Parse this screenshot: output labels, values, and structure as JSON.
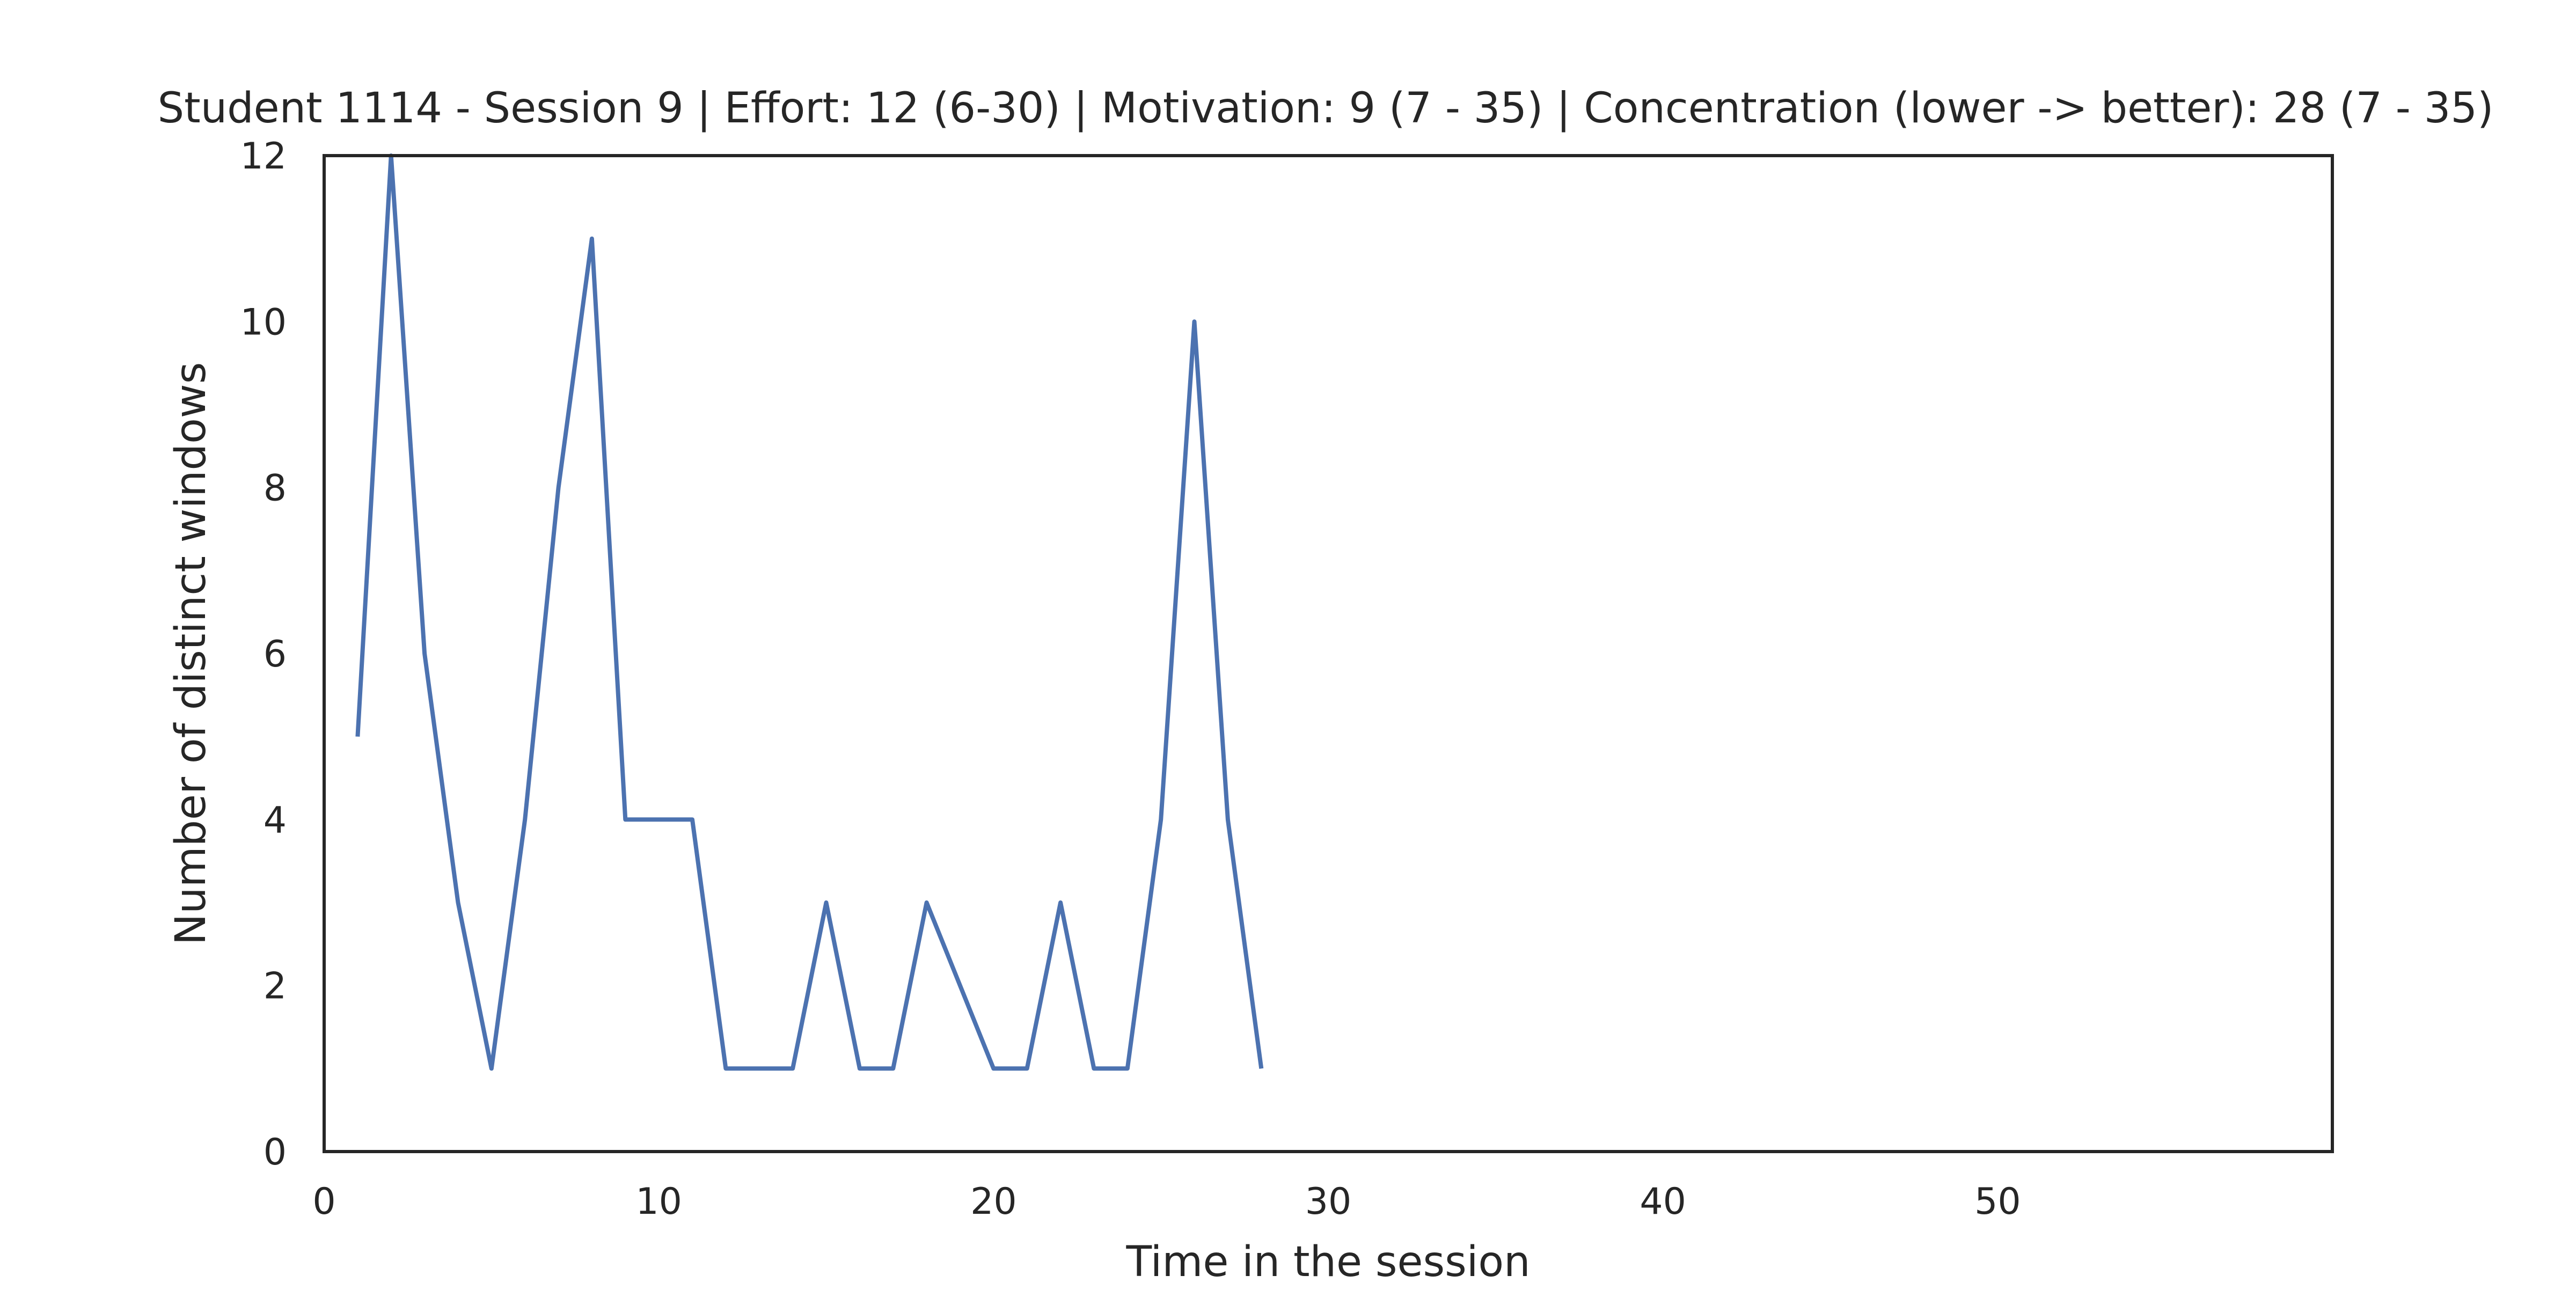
{
  "chart_data": {
    "type": "line",
    "title": "Student 1114 - Session 9 | Effort: 12 (6-30) | Motivation: 9 (7 - 35) | Concentration (lower -> better): 28 (7 - 35)",
    "xlabel": "Time in the session",
    "ylabel": "Number of distinct windows",
    "xlim": [
      0,
      60
    ],
    "ylim": [
      0,
      12
    ],
    "x_ticks": [
      0,
      10,
      20,
      30,
      40,
      50
    ],
    "y_ticks": [
      0,
      2,
      4,
      6,
      8,
      10,
      12
    ],
    "grid": false,
    "line_color": "#4c72b0",
    "series": [
      {
        "x": [
          1,
          2,
          3,
          4,
          5,
          6,
          7,
          8,
          9,
          10,
          11,
          12,
          13,
          14,
          15,
          16,
          17,
          18,
          19,
          20,
          21,
          22,
          23,
          24,
          25,
          26,
          27,
          28
        ],
        "values": [
          5,
          12,
          6,
          3,
          1,
          4,
          8,
          11,
          4,
          4,
          4,
          1,
          1,
          1,
          3,
          1,
          1,
          3,
          2,
          1,
          1,
          3,
          1,
          1,
          4,
          10,
          4,
          1
        ]
      }
    ]
  }
}
